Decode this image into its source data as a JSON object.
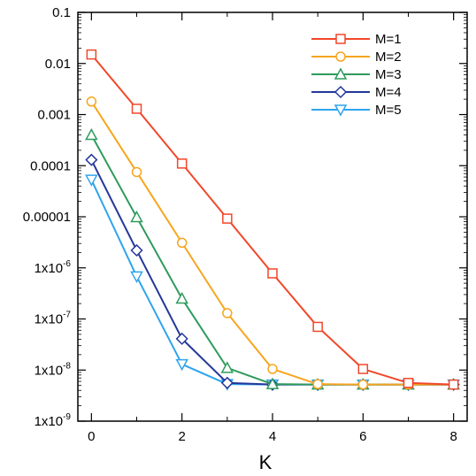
{
  "chart_data": {
    "type": "line",
    "title": "",
    "xlabel": "K",
    "ylabel": "",
    "xlim": [
      -0.3,
      8.3
    ],
    "ylim": [
      1e-09,
      0.1
    ],
    "yscale": "log",
    "grid": false,
    "legend_position": "top-right",
    "x_ticks": [
      0,
      2,
      4,
      6,
      8
    ],
    "x_tick_labels": [
      "0",
      "2",
      "4",
      "6",
      "8"
    ],
    "y_ticks": [
      0.1,
      0.01,
      0.001,
      0.0001,
      1e-05,
      1e-06,
      1e-07,
      1e-08,
      1e-09
    ],
    "y_tick_labels": [
      "0.1",
      "0.01",
      "0.001",
      "0.0001",
      "0.00001",
      "1x10",
      "1x10",
      "1x10",
      "1x10"
    ],
    "y_tick_exponents": [
      "",
      "",
      "",
      "",
      "",
      "-6",
      "-7",
      "-8",
      "-9"
    ],
    "x": [
      0,
      1,
      2,
      3,
      4,
      5,
      6,
      7,
      8
    ],
    "series": [
      {
        "name": "M=1",
        "color": "#f2472a",
        "marker": "square",
        "values": [
          0.015,
          0.0013,
          0.00011,
          9.2e-06,
          7.8e-07,
          7e-08,
          1.05e-08,
          5.6e-09,
          5.2e-09
        ]
      },
      {
        "name": "M=2",
        "color": "#f7a51e",
        "marker": "circle",
        "values": [
          0.0018,
          7.5e-05,
          3.1e-06,
          1.3e-07,
          1.05e-08,
          5.3e-09,
          5.2e-09,
          5.2e-09,
          5.2e-09
        ]
      },
      {
        "name": "M=3",
        "color": "#2f9b5c",
        "marker": "triangle-up",
        "values": [
          0.0004,
          9.8e-06,
          2.5e-07,
          1.1e-08,
          5.3e-09,
          5.2e-09,
          5.2e-09,
          5.2e-09,
          5.2e-09
        ]
      },
      {
        "name": "M=4",
        "color": "#23379a",
        "marker": "diamond",
        "values": [
          0.00013,
          2.2e-06,
          4.1e-08,
          5.6e-09,
          5.2e-09,
          5.2e-09,
          5.2e-09,
          5.2e-09,
          5.2e-09
        ]
      },
      {
        "name": "M=5",
        "color": "#2ea4ee",
        "marker": "triangle-down",
        "values": [
          5.3e-05,
          6.8e-07,
          1.3e-08,
          5.3e-09,
          5.2e-09,
          5.2e-09,
          5.2e-09,
          5.2e-09,
          5.2e-09
        ]
      }
    ]
  }
}
